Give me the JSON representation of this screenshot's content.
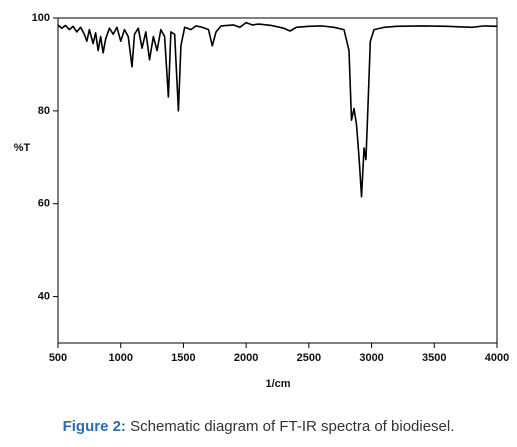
{
  "chart_data": {
    "type": "line",
    "xlabel": "1/cm",
    "ylabel": "%T",
    "x": [
      500,
      530,
      560,
      590,
      620,
      650,
      680,
      710,
      730,
      750,
      780,
      800,
      820,
      840,
      860,
      880,
      910,
      940,
      970,
      1000,
      1030,
      1060,
      1090,
      1110,
      1140,
      1170,
      1200,
      1230,
      1260,
      1290,
      1320,
      1350,
      1380,
      1400,
      1430,
      1460,
      1480,
      1510,
      1560,
      1600,
      1650,
      1700,
      1730,
      1760,
      1800,
      1900,
      1950,
      2000,
      2050,
      2100,
      2200,
      2300,
      2350,
      2400,
      2500,
      2600,
      2700,
      2780,
      2820,
      2840,
      2860,
      2880,
      2900,
      2920,
      2940,
      2955,
      2970,
      2990,
      3020,
      3100,
      3200,
      3400,
      3600,
      3800,
      3900,
      4000
    ],
    "values": [
      98.5,
      97.8,
      98.4,
      97.5,
      98.2,
      97.0,
      98.0,
      96.5,
      95.0,
      97.5,
      94.5,
      96.8,
      93.0,
      96.0,
      92.5,
      95.5,
      97.8,
      96.5,
      98.0,
      95.0,
      97.5,
      96.0,
      89.5,
      96.5,
      97.8,
      93.5,
      97.0,
      91.0,
      96.0,
      93.0,
      97.5,
      96.0,
      83.0,
      97.0,
      96.5,
      80.0,
      94.0,
      98.0,
      97.5,
      98.3,
      98.0,
      97.5,
      94.0,
      97.0,
      98.3,
      98.5,
      98.0,
      99.0,
      98.5,
      98.7,
      98.4,
      97.8,
      97.2,
      98.0,
      98.2,
      98.3,
      98.0,
      97.5,
      93.0,
      78.0,
      80.5,
      77.0,
      70.0,
      61.5,
      72.0,
      69.5,
      80.0,
      95.0,
      97.5,
      98.0,
      98.2,
      98.3,
      98.2,
      98.0,
      98.3,
      98.2
    ],
    "color": "#000000",
    "xlim": [
      500,
      4000
    ],
    "xticks": [
      500,
      1000,
      1500,
      2000,
      2500,
      3000,
      3500,
      4000
    ],
    "ylim": [
      30,
      100
    ],
    "yticks": [
      40,
      60,
      80,
      100
    ],
    "grid": false
  },
  "caption": {
    "label": "Figure 2:",
    "text": "Schematic diagram of FT-IR spectra of biodiesel."
  }
}
